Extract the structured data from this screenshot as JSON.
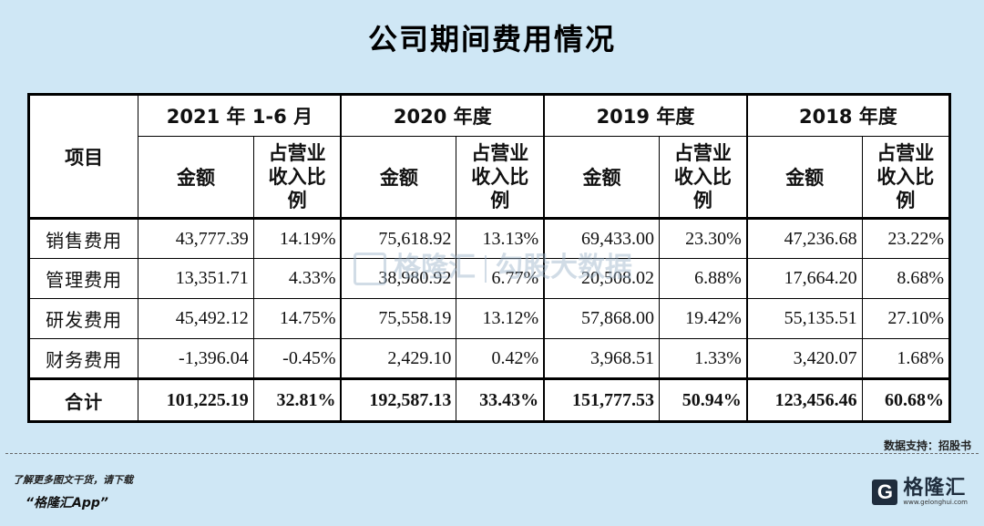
{
  "title": "公司期间费用情况",
  "table": {
    "item_header": "项目",
    "periods": [
      "2021 年 1-6 月",
      "2020 年度",
      "2019 年度",
      "2018 年度"
    ],
    "amount_header": "金额",
    "ratio_header_lines": [
      "占营业",
      "收入比",
      "例"
    ],
    "rows": [
      {
        "label": "销售费用",
        "cells": [
          "43,777.39",
          "14.19%",
          "75,618.92",
          "13.13%",
          "69,433.00",
          "23.30%",
          "47,236.68",
          "23.22%"
        ]
      },
      {
        "label": "管理费用",
        "cells": [
          "13,351.71",
          "4.33%",
          "38,980.92",
          "6.77%",
          "20,508.02",
          "6.88%",
          "17,664.20",
          "8.68%"
        ]
      },
      {
        "label": "研发费用",
        "cells": [
          "45,492.12",
          "14.75%",
          "75,558.19",
          "13.12%",
          "57,868.00",
          "19.42%",
          "55,135.51",
          "27.10%"
        ]
      },
      {
        "label": "财务费用",
        "cells": [
          "-1,396.04",
          "-0.45%",
          "2,429.10",
          "0.42%",
          "3,968.51",
          "1.33%",
          "3,420.07",
          "1.68%"
        ]
      }
    ],
    "total": {
      "label": "合计",
      "cells": [
        "101,225.19",
        "32.81%",
        "192,587.13",
        "33.43%",
        "151,777.53",
        "50.94%",
        "123,456.46",
        "60.68%"
      ]
    }
  },
  "watermark": {
    "brand": "格隆汇",
    "slogan": "勾股大数据"
  },
  "source": "数据支持：招股书",
  "footer": {
    "promo": "了解更多图文干货，请下载",
    "app_name": "“格隆汇App”",
    "brand_name": "格隆汇",
    "brand_url": "www.gelonghui.com",
    "brand_icon": "G"
  }
}
